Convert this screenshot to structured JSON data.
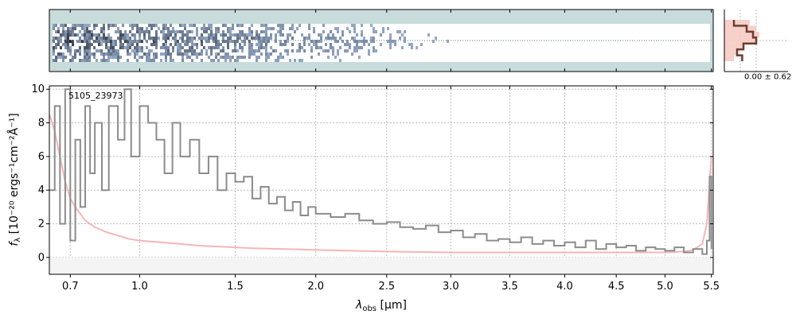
{
  "chart_data": {
    "type": "line",
    "object_id": "5105_23973",
    "xlabel_main": "λ",
    "xlabel_sub": "obs",
    "xlabel_unit": " [μm]",
    "ylabel_f": "f",
    "ylabel_sub": "λ",
    "ylabel_unit": " [10⁻²⁰ ergs⁻¹cm⁻²Å⁻¹]",
    "xlim": [
      0.62,
      5.52
    ],
    "ylim": [
      -1,
      10.2
    ],
    "x_scale": "sqrt",
    "xticks": [
      0.7,
      1.0,
      1.5,
      2.0,
      2.5,
      3.0,
      3.5,
      4.0,
      4.5,
      5.0,
      5.5
    ],
    "xtick_labels": [
      "0.7",
      "1.0",
      "1.5",
      "2.0",
      "2.5",
      "3.0",
      "3.5",
      "4.0",
      "4.5",
      "5.0",
      "5.5"
    ],
    "yticks": [
      0,
      2,
      4,
      6,
      8,
      10
    ],
    "ytick_labels": [
      "0",
      "2",
      "4",
      "6",
      "8",
      "10"
    ],
    "grid": true,
    "series": [
      {
        "kind": "flux",
        "color": "#8c8c8c",
        "x": [
          0.62,
          0.64,
          0.66,
          0.68,
          0.7,
          0.72,
          0.74,
          0.76,
          0.78,
          0.8,
          0.83,
          0.86,
          0.9,
          0.93,
          0.96,
          1.0,
          1.04,
          1.08,
          1.12,
          1.16,
          1.2,
          1.25,
          1.3,
          1.35,
          1.4,
          1.45,
          1.5,
          1.55,
          1.6,
          1.65,
          1.7,
          1.75,
          1.8,
          1.85,
          1.9,
          1.95,
          2.0,
          2.1,
          2.2,
          2.3,
          2.4,
          2.5,
          2.6,
          2.7,
          2.8,
          2.9,
          3.0,
          3.1,
          3.2,
          3.3,
          3.4,
          3.5,
          3.6,
          3.7,
          3.8,
          3.9,
          4.0,
          4.1,
          4.2,
          4.3,
          4.4,
          4.5,
          4.6,
          4.7,
          4.8,
          4.9,
          5.0,
          5.1,
          5.2,
          5.3,
          5.4,
          5.45,
          5.48,
          5.5
        ],
        "y": [
          4,
          9,
          2,
          10,
          1,
          7,
          3,
          9,
          5,
          8,
          4,
          9,
          7,
          10,
          6,
          9,
          8,
          7,
          5,
          8,
          6,
          7,
          5,
          6,
          4,
          5,
          4.5,
          4.8,
          3.5,
          4.2,
          3.2,
          3.6,
          2.8,
          3.3,
          2.5,
          3.0,
          2.6,
          2.4,
          2.6,
          2.2,
          2.0,
          2.1,
          1.8,
          1.7,
          1.9,
          1.5,
          1.6,
          1.2,
          1.4,
          1.0,
          1.1,
          0.9,
          1.2,
          0.8,
          1.0,
          0.7,
          0.9,
          0.6,
          1.0,
          0.5,
          0.8,
          0.6,
          0.7,
          0.4,
          0.6,
          0.5,
          0.4,
          0.6,
          0.3,
          0.5,
          0.2,
          1.0,
          4.8,
          0.5
        ]
      },
      {
        "kind": "error",
        "color": "#f4b6b6",
        "x": [
          0.62,
          0.64,
          0.66,
          0.68,
          0.7,
          0.72,
          0.74,
          0.76,
          0.78,
          0.8,
          0.85,
          0.9,
          0.95,
          1.0,
          1.1,
          1.2,
          1.3,
          1.4,
          1.5,
          1.6,
          1.8,
          2.0,
          2.5,
          3.0,
          3.5,
          4.0,
          4.5,
          5.0,
          5.2,
          5.3,
          5.4,
          5.45,
          5.48,
          5.5
        ],
        "y": [
          8.5,
          7.5,
          6,
          4.5,
          3.5,
          3,
          2.6,
          2.2,
          2.0,
          1.8,
          1.5,
          1.3,
          1.1,
          1.0,
          0.9,
          0.8,
          0.7,
          0.65,
          0.6,
          0.55,
          0.5,
          0.45,
          0.35,
          0.3,
          0.3,
          0.3,
          0.3,
          0.3,
          0.35,
          0.45,
          0.8,
          2.0,
          4.5,
          6.0
        ]
      }
    ],
    "histogram": {
      "label": "0.00 ± 0.62",
      "profile_x": [
        0.15,
        0.35,
        0.45,
        0.5,
        0.3,
        0.2,
        0.28
      ],
      "error_x": [
        0.4,
        0.5,
        0.55,
        0.5,
        0.3,
        0.2,
        0.15
      ]
    }
  }
}
